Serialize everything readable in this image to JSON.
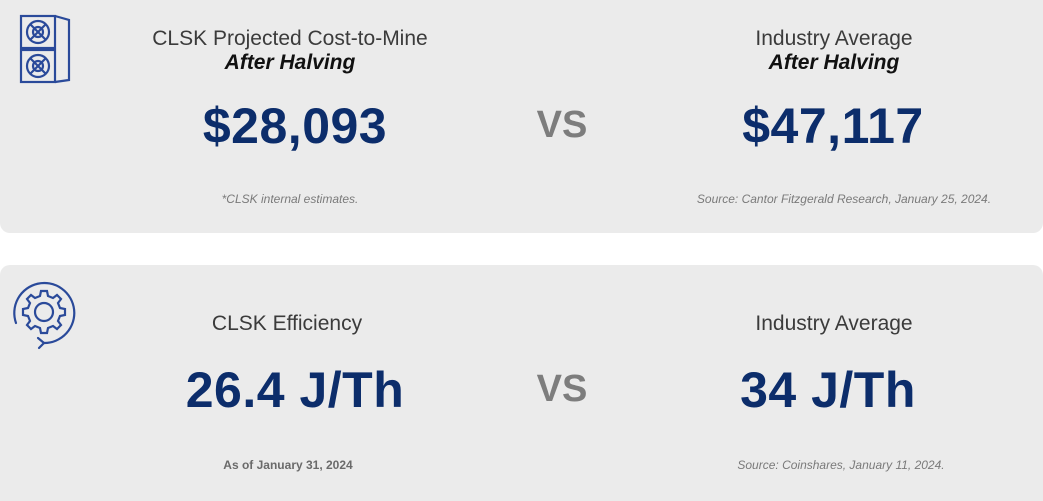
{
  "top": {
    "left_label": "CLSK Projected Cost-to-Mine",
    "left_sublabel": "After Halving",
    "left_value": "$28,093",
    "left_note": "*CLSK internal estimates.",
    "vs": "VS",
    "right_label": "Industry Average",
    "right_sublabel": "After Halving",
    "right_value": "$47,117",
    "right_note": "Source: Cantor Fitzgerald Research, January 25, 2024.",
    "icon": "server-miner-icon"
  },
  "bottom": {
    "left_label": "CLSK Efficiency",
    "left_value": "26.4 J/Th",
    "left_note": "As of January 31, 2024",
    "vs": "VS",
    "right_label": "Industry Average",
    "right_value": "34 J/Th",
    "right_note": "Source: Coinshares, January 11, 2024.",
    "icon": "gear-cycle-icon"
  },
  "colors": {
    "card_bg": "#ebebeb",
    "value_navy": "#0c2d6b",
    "vs_gray": "#7d7d7d",
    "icon_blue": "#2a4a9a"
  }
}
